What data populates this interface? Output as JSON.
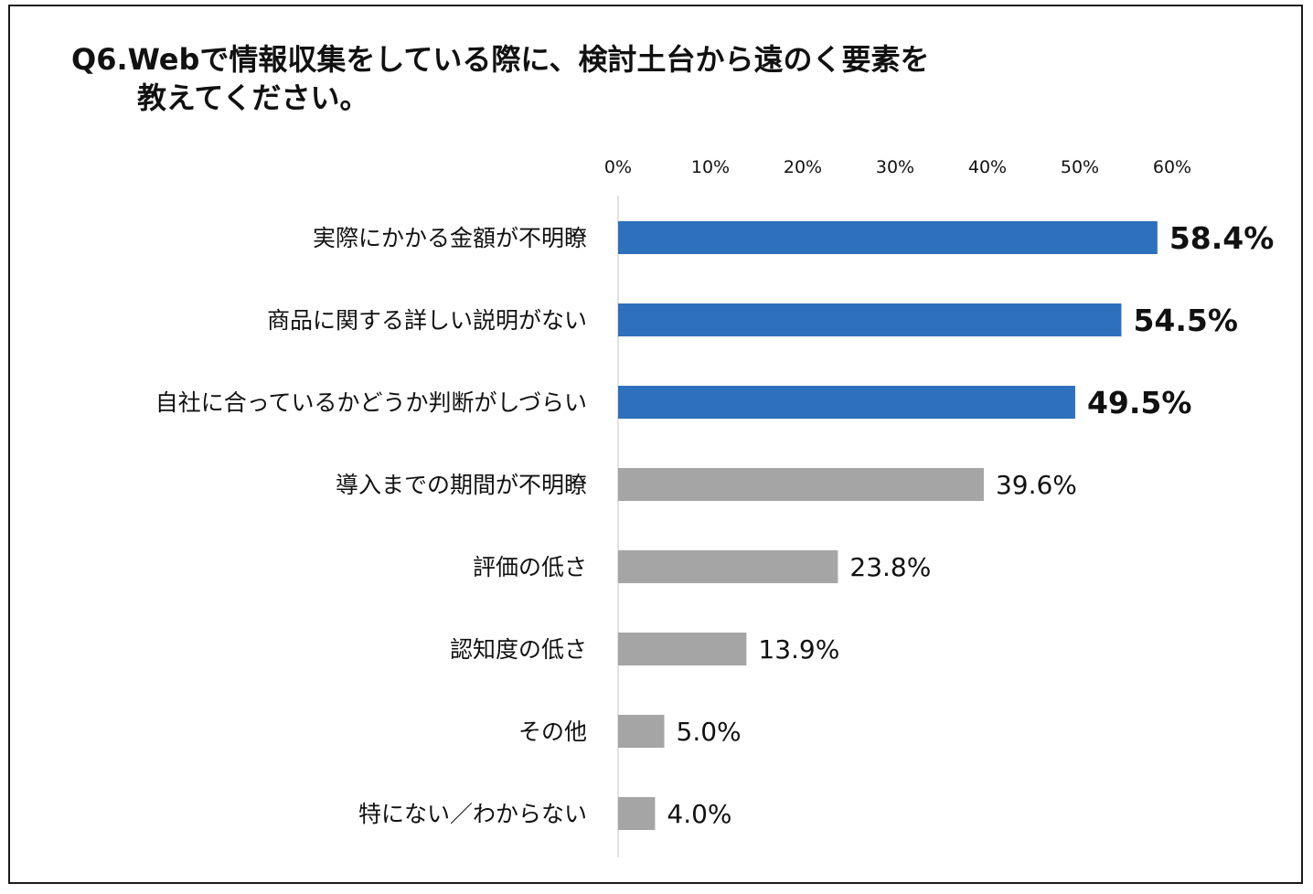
{
  "chart_data": {
    "type": "bar",
    "orientation": "horizontal",
    "title_line1": "Q6.Webで情報収集をしている際に、検討土台から遠のく要素を",
    "title_line2": "教えてください。",
    "xlim": [
      0,
      60
    ],
    "xticks": [
      "0%",
      "10%",
      "20%",
      "30%",
      "40%",
      "50%",
      "60%"
    ],
    "xtick_values": [
      0,
      10,
      20,
      30,
      40,
      50,
      60
    ],
    "axis_position": "top",
    "grid": false,
    "categories": [
      "実際にかかる金額が不明瞭",
      "商品に関する詳しい説明がない",
      "自社に合っているかどうか判断がしづらい",
      "導入までの期間が不明瞭",
      "評価の低さ",
      "認知度の低さ",
      "その他",
      "特にない／わからない"
    ],
    "values": [
      58.4,
      54.5,
      49.5,
      39.6,
      23.8,
      13.9,
      5.0,
      4.0
    ],
    "value_labels": [
      "58.4%",
      "54.5%",
      "49.5%",
      "39.6%",
      "23.8%",
      "13.9%",
      "5.0%",
      "4.0%"
    ],
    "highlight_top_n": 3,
    "colors": {
      "highlight": "#2E70BC",
      "default": "#A5A5A5",
      "axis": "#D9D9D9"
    }
  }
}
